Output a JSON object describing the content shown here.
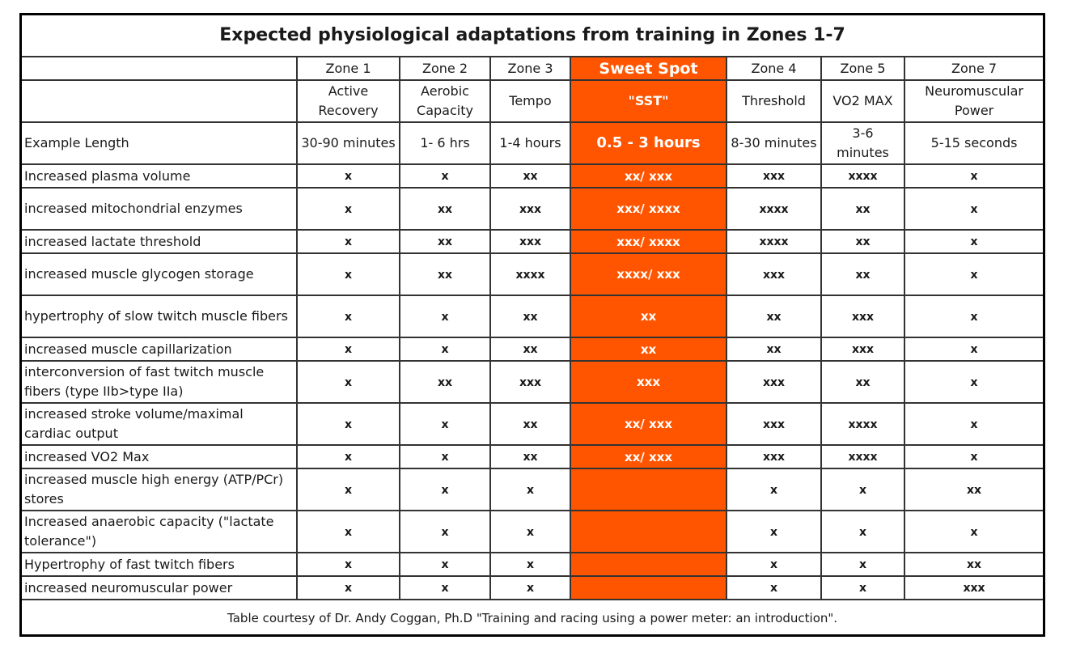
{
  "title": "Expected physiological adaptations from training in Zones 1-7",
  "colors": {
    "sweet_spot": "#ff5500"
  },
  "zones": [
    {
      "zone": "Zone 1",
      "name": "Active Recovery",
      "length": "30-90 minutes"
    },
    {
      "zone": "Zone 2",
      "name": "Aerobic Capacity",
      "length": "1- 6 hrs"
    },
    {
      "zone": "Zone 3",
      "name": "Tempo",
      "length": "1-4 hours"
    },
    {
      "zone": "Sweet Spot",
      "name": "\"SST\"",
      "length": "0.5 - 3 hours"
    },
    {
      "zone": "Zone 4",
      "name": "Threshold",
      "length": "8-30 minutes"
    },
    {
      "zone": "Zone 5",
      "name": "VO2 MAX",
      "length": "3-6 minutes"
    },
    {
      "zone": "Zone 7",
      "name": "Neuromuscular Power",
      "length": "5-15 seconds"
    }
  ],
  "length_label": "Example Length",
  "rows": [
    {
      "label": "Increased plasma volume",
      "values": [
        "x",
        "x",
        "xx",
        "xx/ xxx",
        "xxx",
        "xxxx",
        "x"
      ],
      "tall": false
    },
    {
      "label": "increased mitochondrial enzymes",
      "values": [
        "x",
        "xx",
        "xxx",
        "xxx/ xxxx",
        "xxxx",
        "xx",
        "x"
      ],
      "tall": true
    },
    {
      "label": "increased lactate threshold",
      "values": [
        "x",
        "xx",
        "xxx",
        "xxx/ xxxx",
        "xxxx",
        "xx",
        "x"
      ],
      "tall": false
    },
    {
      "label": "increased muscle glycogen storage",
      "values": [
        "x",
        "xx",
        "xxxx",
        "xxxx/ xxx",
        "xxx",
        "xx",
        "x"
      ],
      "tall": true
    },
    {
      "label": "hypertrophy of slow twitch muscle fibers",
      "values": [
        "x",
        "x",
        "xx",
        "xx",
        "xx",
        "xxx",
        "x"
      ],
      "tall": true
    },
    {
      "label": "increased muscle capillarization",
      "values": [
        "x",
        "x",
        "xx",
        "xx",
        "xx",
        "xxx",
        "x"
      ],
      "tall": false
    },
    {
      "label": "interconversion of fast twitch muscle fibers (type IIb>type IIa)",
      "values": [
        "x",
        "xx",
        "xxx",
        "xxx",
        "xxx",
        "xx",
        "x"
      ],
      "tall": true
    },
    {
      "label": "increased stroke volume/maximal cardiac output",
      "values": [
        "x",
        "x",
        "xx",
        "xx/ xxx",
        "xxx",
        "xxxx",
        "x"
      ],
      "tall": true
    },
    {
      "label": "increased VO2 Max",
      "values": [
        "x",
        "x",
        "xx",
        "xx/ xxx",
        "xxx",
        "xxxx",
        "x"
      ],
      "tall": false
    },
    {
      "label": "increased muscle high energy (ATP/PCr) stores",
      "values": [
        "x",
        "x",
        "x",
        "",
        "x",
        "x",
        "xx"
      ],
      "tall": true
    },
    {
      "label": "Increased anaerobic capacity (\"lactate tolerance\")",
      "values": [
        "x",
        "x",
        "x",
        "",
        "x",
        "x",
        "x"
      ],
      "tall": true
    },
    {
      "label": "Hypertrophy of fast twitch fibers",
      "values": [
        "x",
        "x",
        "x",
        "",
        "x",
        "x",
        "xx"
      ],
      "tall": false
    },
    {
      "label": "increased neuromuscular power",
      "values": [
        "x",
        "x",
        "x",
        "",
        "x",
        "x",
        "xxx"
      ],
      "tall": false
    }
  ],
  "footnote": "Table courtesy of Dr. Andy Coggan, Ph.D \"Training and racing using a power meter: an introduction\"."
}
